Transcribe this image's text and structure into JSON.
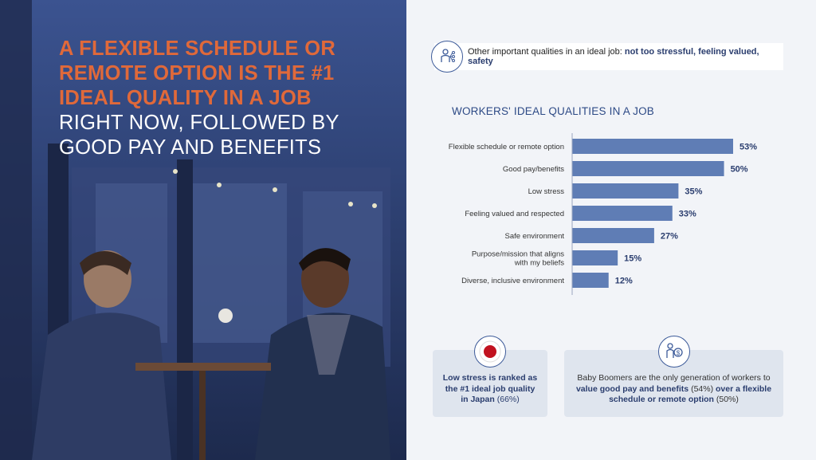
{
  "headline": {
    "accent": "A FLEXIBLE SCHEDULE OR REMOTE OPTION IS THE #1 IDEAL QUALITY IN A JOB",
    "rest": "RIGHT NOW, FOLLOWED BY GOOD PAY AND BENEFITS"
  },
  "top_note": {
    "prefix": "Other important qualities in an ideal job: ",
    "bold": "not too stressful, feeling valued, safety",
    "icon": "person-network-icon"
  },
  "chart_data": {
    "type": "bar",
    "orientation": "horizontal",
    "title": "WORKERS' IDEAL QUALITIES IN A JOB",
    "categories": [
      "Flexible schedule or remote option",
      "Good pay/benefits",
      "Low stress",
      "Feeling valued and respected",
      "Safe environment",
      "Purpose/mission that aligns with my beliefs",
      "Diverse, inclusive environment"
    ],
    "category_lines": [
      [
        "Flexible schedule or remote option"
      ],
      [
        "Good pay/benefits"
      ],
      [
        "Low stress"
      ],
      [
        "Feeling valued and respected"
      ],
      [
        "Safe environment"
      ],
      [
        "Purpose/mission that aligns",
        "with my beliefs"
      ],
      [
        "Diverse, inclusive environment"
      ]
    ],
    "values": [
      53,
      50,
      35,
      33,
      27,
      15,
      12
    ],
    "value_labels": [
      "53%",
      "50%",
      "35%",
      "33%",
      "27%",
      "15%",
      "12%"
    ],
    "xlim": [
      0,
      53
    ],
    "bar_color": "#5f7db5",
    "grid": false
  },
  "cards": {
    "left": {
      "icon": "japan-flag-icon",
      "bold": "Low stress is ranked as the #1 ideal job quality in Japan",
      "light": " (66%)"
    },
    "right": {
      "icon": "person-money-icon",
      "p1": "Baby Boomers are the only generation of workers to ",
      "b1": "value good pay and benefits",
      "p2": " (54%) ",
      "b2": "over a flexible schedule or remote option",
      "p3": " (50%)"
    }
  },
  "colors": {
    "accent": "#e0693a",
    "navy": "#2a3d6e",
    "bar": "#5f7db5"
  }
}
